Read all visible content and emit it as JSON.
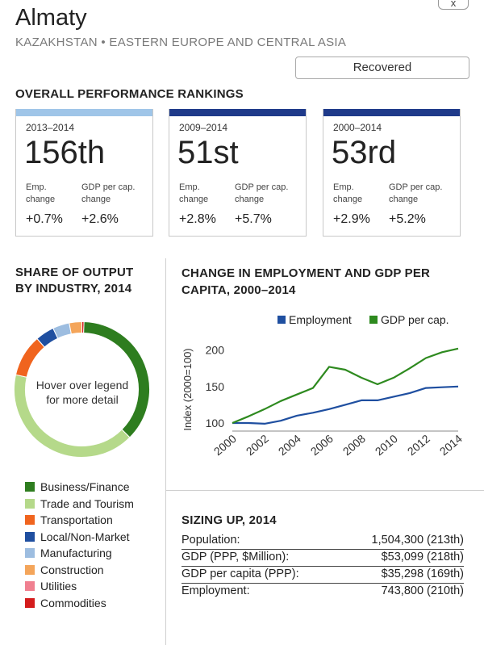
{
  "close_label": "x",
  "header": {
    "city": "Almaty",
    "subtitle": "KAZAKHSTAN • EASTERN EUROPE AND CENTRAL ASIA",
    "status": "Recovered"
  },
  "rankings": {
    "heading": "OVERALL PERFORMANCE RANKINGS",
    "cards": [
      {
        "period": "2013–2014",
        "rank": "156th",
        "color": "#9fc5e8",
        "emp_label_1": "Emp.",
        "emp_label_2": "change",
        "gdp_label_1": "GDP per cap.",
        "gdp_label_2": "change",
        "emp_value": "+0.7%",
        "gdp_value": "+2.6%"
      },
      {
        "period": "2009–2014",
        "rank": "51st",
        "color": "#1f3a8a",
        "emp_label_1": "Emp.",
        "emp_label_2": "change",
        "gdp_label_1": "GDP per cap.",
        "gdp_label_2": "change",
        "emp_value": "+2.8%",
        "gdp_value": "+5.7%"
      },
      {
        "period": "2000–2014",
        "rank": "53rd",
        "color": "#1f3a8a",
        "emp_label_1": "Emp.",
        "emp_label_2": "change",
        "gdp_label_1": "GDP per cap.",
        "gdp_label_2": "change",
        "emp_value": "+2.9%",
        "gdp_value": "+5.2%"
      }
    ]
  },
  "share": {
    "heading_1": "SHARE OF OUTPUT",
    "heading_2": "BY INDUSTRY, 2014",
    "center_line_1": "Hover over legend",
    "center_line_2": "for more detail",
    "legend": [
      {
        "label": "Business/Finance",
        "color": "#2e7d1f"
      },
      {
        "label": "Trade and Tourism",
        "color": "#b5d98a"
      },
      {
        "label": "Transportation",
        "color": "#f0641e"
      },
      {
        "label": "Local/Non-Market",
        "color": "#1f4fa0"
      },
      {
        "label": "Manufacturing",
        "color": "#9dbde0"
      },
      {
        "label": "Construction",
        "color": "#f4a55a"
      },
      {
        "label": "Utilities",
        "color": "#f08090"
      },
      {
        "label": "Commodities",
        "color": "#d41c1c"
      }
    ]
  },
  "chart_heading_1": "CHANGE IN EMPLOYMENT AND GDP PER",
  "chart_heading_2": "CAPITA, 2000–2014",
  "chart_data": {
    "type": "line",
    "x": [
      2000,
      2001,
      2002,
      2003,
      2004,
      2005,
      2006,
      2007,
      2008,
      2009,
      2010,
      2011,
      2012,
      2013,
      2014
    ],
    "x_ticks": [
      "2000",
      "2002",
      "2004",
      "2006",
      "2008",
      "2010",
      "2012",
      "2014"
    ],
    "y_ticks": [
      "100",
      "150",
      "200"
    ],
    "ylabel": "Index (2000=100)",
    "ylim": [
      90,
      215
    ],
    "legend_position": "top-right",
    "series": [
      {
        "name": "Employment",
        "color": "#1f4fa0",
        "values": [
          100,
          100,
          99,
          103,
          110,
          114,
          119,
          125,
          131,
          131,
          136,
          141,
          148,
          149,
          150
        ]
      },
      {
        "name": "GDP per cap.",
        "color": "#2e8a1f",
        "values": [
          100,
          109,
          119,
          130,
          139,
          148,
          177,
          173,
          162,
          153,
          162,
          175,
          189,
          197,
          202
        ]
      }
    ]
  },
  "donut_data": {
    "type": "pie",
    "categories": [
      "Commodities",
      "Business/Finance",
      "Trade and Tourism",
      "Transportation",
      "Local/Non-Market",
      "Manufacturing",
      "Construction"
    ],
    "values": [
      0.5,
      37,
      41,
      10,
      4.5,
      4,
      3
    ],
    "colors": [
      "#d41c1c",
      "#2e7d1f",
      "#b5d98a",
      "#f0641e",
      "#1f4fa0",
      "#9dbde0",
      "#f4a55a"
    ]
  },
  "sizing": {
    "heading": "SIZING UP, 2014",
    "rows": [
      {
        "label": "Population:",
        "value": "1,504,300 (213th)"
      },
      {
        "label": "GDP (PPP, $Million):",
        "value": "$53,099 (218th)"
      },
      {
        "label": "GDP per capita (PPP):",
        "value": "$35,298 (169th)"
      },
      {
        "label": "Employment:",
        "value": "743,800 (210th)"
      }
    ]
  }
}
